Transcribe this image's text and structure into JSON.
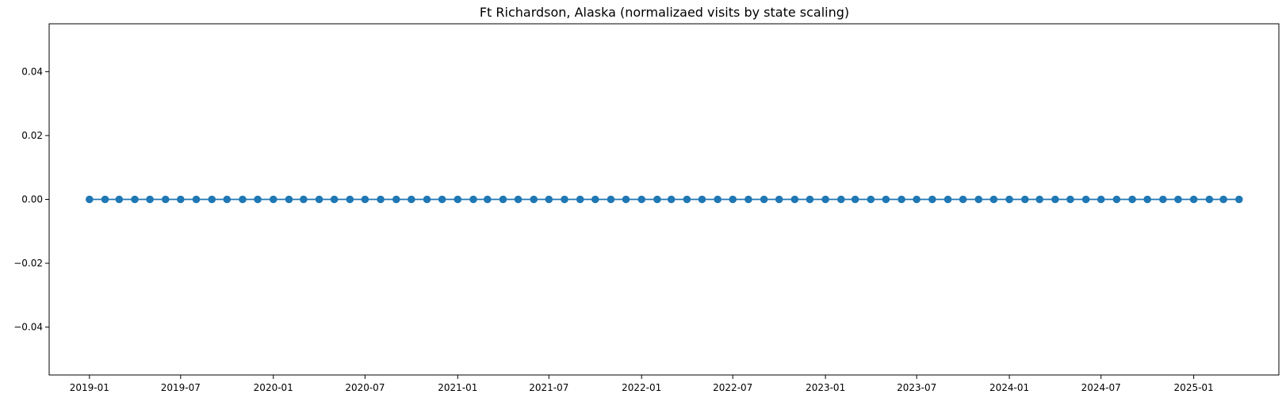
{
  "chart_data": {
    "type": "line",
    "title": "Ft Richardson, Alaska (normalizaed visits by state scaling)",
    "xlabel": "",
    "ylabel": "",
    "x_start": "2019-01",
    "x_end": "2025-04",
    "x": [
      "2019-01",
      "2019-02",
      "2019-03",
      "2019-04",
      "2019-05",
      "2019-06",
      "2019-07",
      "2019-08",
      "2019-09",
      "2019-10",
      "2019-11",
      "2019-12",
      "2020-01",
      "2020-02",
      "2020-03",
      "2020-04",
      "2020-05",
      "2020-06",
      "2020-07",
      "2020-08",
      "2020-09",
      "2020-10",
      "2020-11",
      "2020-12",
      "2021-01",
      "2021-02",
      "2021-03",
      "2021-04",
      "2021-05",
      "2021-06",
      "2021-07",
      "2021-08",
      "2021-09",
      "2021-10",
      "2021-11",
      "2021-12",
      "2022-01",
      "2022-02",
      "2022-03",
      "2022-04",
      "2022-05",
      "2022-06",
      "2022-07",
      "2022-08",
      "2022-09",
      "2022-10",
      "2022-11",
      "2022-12",
      "2023-01",
      "2023-02",
      "2023-03",
      "2023-04",
      "2023-05",
      "2023-06",
      "2023-07",
      "2023-08",
      "2023-09",
      "2023-10",
      "2023-11",
      "2023-12",
      "2024-01",
      "2024-02",
      "2024-03",
      "2024-04",
      "2024-05",
      "2024-06",
      "2024-07",
      "2024-08",
      "2024-09",
      "2024-10",
      "2024-11",
      "2024-12",
      "2025-01",
      "2025-02",
      "2025-03",
      "2025-04"
    ],
    "series": [
      {
        "color": "#1f77b4",
        "marker": "circle",
        "value": 0
      }
    ],
    "xticks": [
      "2019-01",
      "2019-07",
      "2020-01",
      "2020-07",
      "2021-01",
      "2021-07",
      "2022-01",
      "2022-07",
      "2023-01",
      "2023-07",
      "2024-01",
      "2024-07",
      "2025-01"
    ],
    "yticks": [
      0.04,
      0.02,
      0.0,
      -0.02,
      -0.04
    ],
    "ytick_labels": [
      "0.04",
      "0.02",
      "0.00",
      "−0.02",
      "−0.04"
    ],
    "ylim": [
      -0.055,
      0.055
    ],
    "xlim": [
      "2018-10-13",
      "2025-06-19"
    ],
    "grid": false,
    "legend": false
  }
}
